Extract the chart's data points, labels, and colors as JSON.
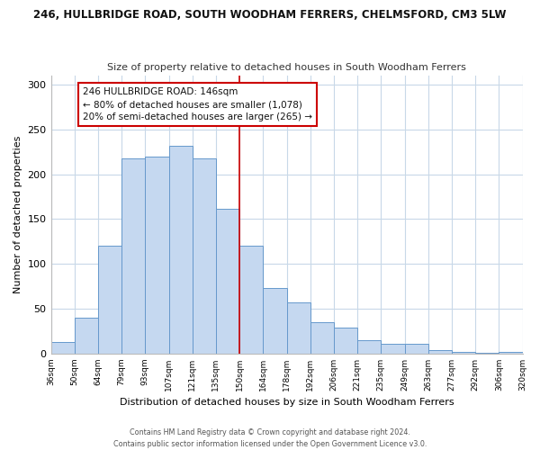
{
  "title": "246, HULLBRIDGE ROAD, SOUTH WOODHAM FERRERS, CHELMSFORD, CM3 5LW",
  "subtitle": "Size of property relative to detached houses in South Woodham Ferrers",
  "xlabel": "Distribution of detached houses by size in South Woodham Ferrers",
  "ylabel": "Number of detached properties",
  "bin_labels": [
    "36sqm",
    "50sqm",
    "64sqm",
    "79sqm",
    "93sqm",
    "107sqm",
    "121sqm",
    "135sqm",
    "150sqm",
    "164sqm",
    "178sqm",
    "192sqm",
    "206sqm",
    "221sqm",
    "235sqm",
    "249sqm",
    "263sqm",
    "277sqm",
    "292sqm",
    "306sqm",
    "320sqm"
  ],
  "bar_heights": [
    13,
    40,
    120,
    218,
    220,
    232,
    218,
    162,
    120,
    73,
    57,
    35,
    29,
    15,
    11,
    11,
    4,
    2,
    1,
    2
  ],
  "bar_color": "#c5d8f0",
  "bar_edge_color": "#6699cc",
  "vline_color": "#cc0000",
  "ylim": [
    0,
    310
  ],
  "yticks": [
    0,
    50,
    100,
    150,
    200,
    250,
    300
  ],
  "annotation_title": "246 HULLBRIDGE ROAD: 146sqm",
  "annotation_line1": "← 80% of detached houses are smaller (1,078)",
  "annotation_line2": "20% of semi-detached houses are larger (265) →",
  "annotation_box_color": "#ffffff",
  "annotation_box_edge": "#cc0000",
  "footer_line1": "Contains HM Land Registry data © Crown copyright and database right 2024.",
  "footer_line2": "Contains public sector information licensed under the Open Government Licence v3.0.",
  "background_color": "#ffffff",
  "grid_color": "#c8d8e8"
}
